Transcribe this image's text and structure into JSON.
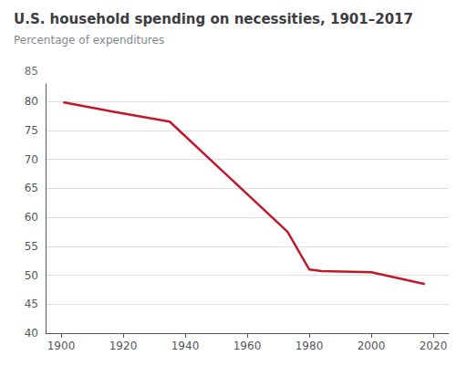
{
  "chart_data": {
    "type": "line",
    "title": "U.S. household spending on necessities, 1901–2017",
    "subtitle": "Percentage of expenditures",
    "annotations": [
      "85"
    ],
    "x": [
      1901,
      1917,
      1935,
      1960,
      1973,
      1980,
      1984,
      2000,
      2017
    ],
    "values": [
      79.8,
      78.2,
      76.5,
      64.0,
      57.5,
      51.0,
      50.7,
      50.5,
      48.5
    ],
    "color": "#c0192c",
    "xlim": [
      1895,
      2025
    ],
    "ylim": [
      40,
      83
    ],
    "xticks": [
      1900,
      1920,
      1940,
      1960,
      1980,
      2000,
      2020
    ],
    "yticks": [
      40,
      45,
      50,
      55,
      60,
      65,
      70,
      75,
      80
    ],
    "grid": true
  }
}
